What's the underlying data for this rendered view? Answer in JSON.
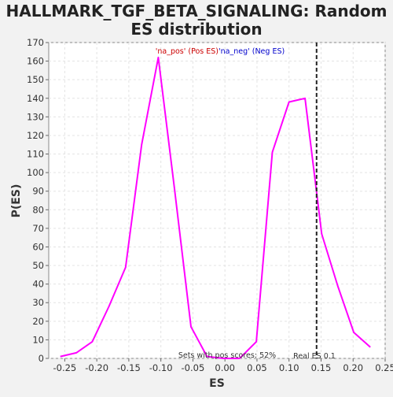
{
  "chart_data": {
    "type": "line",
    "title": "HALLMARK_TGF_BETA_SIGNALING: Random ES distribution",
    "xlabel": "ES",
    "ylabel": "P(ES)",
    "xlim": [
      -0.275,
      0.25
    ],
    "ylim": [
      0,
      170
    ],
    "x_ticks": [
      "-0.25",
      "-0.20",
      "-0.15",
      "-0.10",
      "-0.05",
      "0.00",
      "0.05",
      "0.10",
      "0.15",
      "0.20",
      "0.25"
    ],
    "y_ticks": [
      "0",
      "10",
      "20",
      "30",
      "40",
      "50",
      "60",
      "70",
      "80",
      "90",
      "100",
      "110",
      "120",
      "130",
      "140",
      "150",
      "160",
      "170"
    ],
    "grid": true,
    "legend_position": "top-center",
    "series": [
      {
        "name": "'na_pos' (Pos ES)",
        "color": "#ff00ff",
        "x": [
          -0.257,
          -0.232,
          -0.207,
          -0.181,
          -0.155,
          -0.13,
          -0.104,
          -0.079,
          -0.053,
          -0.028,
          -0.002,
          0.023
        ],
        "y": [
          1,
          3,
          9,
          28,
          49,
          115,
          162,
          92,
          17,
          1,
          0,
          0
        ]
      },
      {
        "name": "'na_neg' (Neg ES)",
        "color": "#ff00ff",
        "x": [
          0.023,
          0.049,
          0.074,
          0.1,
          0.125,
          0.151,
          0.176,
          0.201,
          0.227
        ],
        "y": [
          0,
          9,
          111,
          138,
          140,
          67,
          39,
          14,
          6
        ]
      }
    ],
    "legend_label_colors": [
      "#cc0000",
      "#0000cc"
    ],
    "annotations": {
      "real_es_label": "Real ES 0.1",
      "real_es_value": 0.143,
      "pos_scores_label": "Sets with pos scores: 52%"
    }
  }
}
